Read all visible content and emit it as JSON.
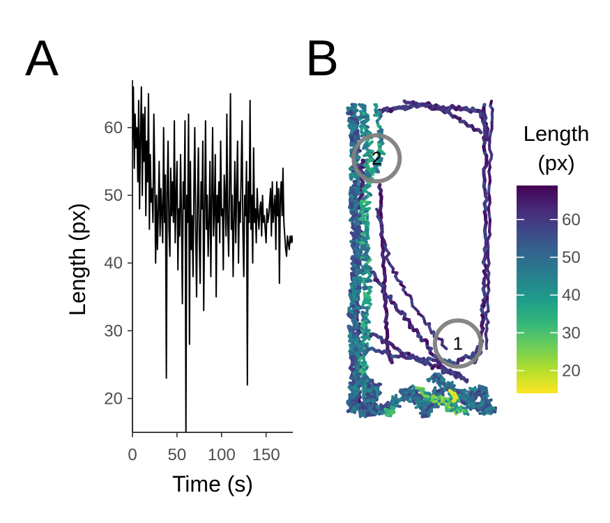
{
  "panels": {
    "a_label": "A",
    "b_label": "B"
  },
  "chart_data": [
    {
      "type": "line",
      "panel": "A",
      "xlabel": "Time (s)",
      "ylabel": "Length (px)",
      "xlim": [
        0,
        180
      ],
      "ylim": [
        15,
        67
      ],
      "x_ticks": [
        0,
        50,
        100,
        150
      ],
      "y_ticks": [
        20,
        30,
        40,
        50,
        60
      ],
      "line_color": "#000000",
      "series": [
        {
          "x": [
            0,
            1,
            2,
            3,
            4,
            5,
            6,
            7,
            8,
            9,
            10,
            11,
            12,
            13,
            14,
            15,
            16,
            17,
            18,
            19,
            20,
            21,
            22,
            23,
            24,
            25,
            26,
            27,
            28,
            29,
            30,
            31,
            32,
            33,
            34,
            35,
            36,
            37,
            38,
            39,
            40,
            41,
            42,
            43,
            44,
            45,
            46,
            47,
            48,
            49,
            50,
            51,
            52,
            53,
            54,
            55,
            56,
            57,
            58,
            59,
            60,
            61,
            62,
            63,
            64,
            65,
            66,
            67,
            68,
            69,
            70,
            71,
            72,
            73,
            74,
            75,
            76,
            77,
            78,
            79,
            80,
            81,
            82,
            83,
            84,
            85,
            86,
            87,
            88,
            89,
            90,
            91,
            92,
            93,
            94,
            95,
            96,
            97,
            98,
            99,
            100,
            101,
            102,
            103,
            104,
            105,
            106,
            107,
            108,
            109,
            110,
            111,
            112,
            113,
            114,
            115,
            116,
            117,
            118,
            119,
            120,
            121,
            122,
            123,
            124,
            125,
            126,
            127,
            128,
            129,
            130,
            131,
            132,
            133,
            134,
            135,
            136,
            137,
            138,
            139,
            140,
            141,
            142,
            143,
            144,
            145,
            146,
            147,
            148,
            149,
            150,
            151,
            152,
            153,
            154,
            155,
            156,
            157,
            158,
            159,
            160,
            161,
            162,
            163,
            164,
            165,
            166,
            167,
            168,
            169,
            170,
            171,
            172,
            173,
            174,
            175,
            176,
            177,
            178,
            179,
            180
          ],
          "values": [
            58,
            66,
            54,
            62,
            57,
            60,
            52,
            64,
            48,
            59,
            66,
            50,
            62,
            55,
            63,
            47,
            58,
            52,
            65,
            45,
            56,
            49,
            51,
            46,
            62,
            54,
            40,
            50,
            42,
            48,
            55,
            44,
            51,
            47,
            43,
            60,
            46,
            53,
            23,
            50,
            58,
            45,
            41,
            54,
            47,
            52,
            46,
            61,
            43,
            50,
            55,
            39,
            48,
            44,
            56,
            47,
            34,
            52,
            48,
            61,
            15,
            50,
            46,
            62,
            28,
            55,
            42,
            47,
            38,
            51,
            60,
            45,
            35,
            49,
            57,
            44,
            37,
            52,
            48,
            58,
            33,
            47,
            61,
            45,
            50,
            41,
            46,
            55,
            38,
            49,
            60,
            44,
            48,
            56,
            35,
            50,
            46,
            52,
            43,
            58,
            47,
            48,
            39,
            53,
            50,
            44,
            62,
            46,
            41,
            52,
            65,
            45,
            50,
            38,
            47,
            55,
            43,
            51,
            58,
            40,
            49,
            46,
            53,
            61,
            45,
            38,
            50,
            47,
            55,
            22,
            52,
            46,
            64,
            45,
            50,
            40,
            57,
            46,
            48,
            43,
            51,
            47,
            45,
            48,
            49,
            44,
            50,
            46,
            47,
            45,
            43,
            48,
            46,
            47,
            49,
            51,
            44,
            52,
            46,
            48,
            50,
            42,
            52,
            47,
            51,
            37,
            50,
            52,
            47,
            54,
            46,
            44,
            42,
            41,
            44,
            43,
            42,
            44,
            43,
            44,
            43
          ]
        }
      ]
    },
    {
      "type": "scatter",
      "panel": "B",
      "legend_title": "Length\n(px)",
      "legend_title_line1": "Length",
      "legend_title_line2": "(px)",
      "legend_placement": "right",
      "legend_ticks": [
        20,
        30,
        40,
        50,
        60
      ],
      "color_range": [
        14,
        69
      ],
      "colormap": "viridis",
      "colormap_stops": [
        "#440154",
        "#482878",
        "#3e4989",
        "#31688e",
        "#26828e",
        "#1f9e89",
        "#35b779",
        "#6ece58",
        "#b5de2b",
        "#fde725"
      ],
      "zones": [
        {
          "label": "1",
          "x": 0.74,
          "y": 0.77
        },
        {
          "label": "2",
          "x": 0.19,
          "y": 0.19
        }
      ],
      "zone_color": "#808080"
    }
  ]
}
